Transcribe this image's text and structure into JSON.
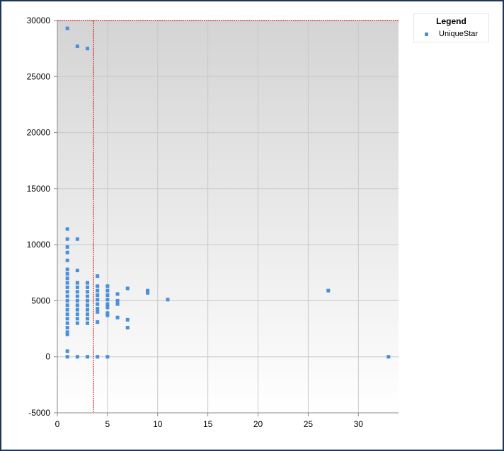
{
  "chart_data": {
    "type": "scatter",
    "title": "",
    "xlabel": "",
    "ylabel": "",
    "xlim": [
      0,
      34
    ],
    "ylim": [
      -5000,
      30000
    ],
    "x_ticks": [
      "0",
      "5",
      "10",
      "15",
      "20",
      "25",
      "30"
    ],
    "y_ticks": [
      "-5000",
      "0",
      "5000",
      "10000",
      "15000",
      "20000",
      "25000",
      "30000"
    ],
    "grid": true,
    "legend": {
      "title": "Legend",
      "position": "top-right"
    },
    "reference_lines": [
      {
        "orientation": "vertical",
        "value": 3.6,
        "color": "#cc0000",
        "style": "dashed"
      },
      {
        "orientation": "horizontal",
        "value": 30000,
        "color": "#cc0000",
        "style": "dashed"
      }
    ],
    "series": [
      {
        "name": "UniqueStar",
        "color": "#4a90d9",
        "marker": "square",
        "points": [
          [
            1,
            29300
          ],
          [
            2,
            27700
          ],
          [
            3,
            27500
          ],
          [
            1,
            11400
          ],
          [
            1,
            10500
          ],
          [
            1,
            9800
          ],
          [
            1,
            9300
          ],
          [
            1,
            8600
          ],
          [
            1,
            7800
          ],
          [
            1,
            7400
          ],
          [
            1,
            7000
          ],
          [
            1,
            6600
          ],
          [
            1,
            6200
          ],
          [
            1,
            5800
          ],
          [
            1,
            5400
          ],
          [
            1,
            5000
          ],
          [
            1,
            4600
          ],
          [
            1,
            4200
          ],
          [
            1,
            3800
          ],
          [
            1,
            3400
          ],
          [
            1,
            3000
          ],
          [
            1,
            2600
          ],
          [
            1,
            2200
          ],
          [
            1,
            2000
          ],
          [
            1,
            500
          ],
          [
            1,
            0
          ],
          [
            2,
            10500
          ],
          [
            2,
            7700
          ],
          [
            2,
            6600
          ],
          [
            2,
            6200
          ],
          [
            2,
            5800
          ],
          [
            2,
            5400
          ],
          [
            2,
            5000
          ],
          [
            2,
            4600
          ],
          [
            2,
            4200
          ],
          [
            2,
            3800
          ],
          [
            2,
            3400
          ],
          [
            2,
            3000
          ],
          [
            2,
            0
          ],
          [
            3,
            6600
          ],
          [
            3,
            6200
          ],
          [
            3,
            5800
          ],
          [
            3,
            5400
          ],
          [
            3,
            5000
          ],
          [
            3,
            4600
          ],
          [
            3,
            4200
          ],
          [
            3,
            3800
          ],
          [
            3,
            3400
          ],
          [
            3,
            3000
          ],
          [
            3,
            0
          ],
          [
            4,
            7200
          ],
          [
            4,
            6300
          ],
          [
            4,
            5900
          ],
          [
            4,
            5500
          ],
          [
            4,
            5100
          ],
          [
            4,
            4700
          ],
          [
            4,
            4300
          ],
          [
            4,
            4000
          ],
          [
            4,
            3100
          ],
          [
            4,
            0
          ],
          [
            5,
            6300
          ],
          [
            5,
            5900
          ],
          [
            5,
            5500
          ],
          [
            5,
            5100
          ],
          [
            5,
            4700
          ],
          [
            5,
            4400
          ],
          [
            5,
            3900
          ],
          [
            5,
            3700
          ],
          [
            5,
            0
          ],
          [
            6,
            5600
          ],
          [
            6,
            5000
          ],
          [
            6,
            4700
          ],
          [
            6,
            3500
          ],
          [
            7,
            6100
          ],
          [
            7,
            3300
          ],
          [
            7,
            2600
          ],
          [
            9,
            5900
          ],
          [
            9,
            5700
          ],
          [
            11,
            5100
          ],
          [
            27,
            5900
          ],
          [
            33,
            0
          ]
        ]
      }
    ]
  }
}
